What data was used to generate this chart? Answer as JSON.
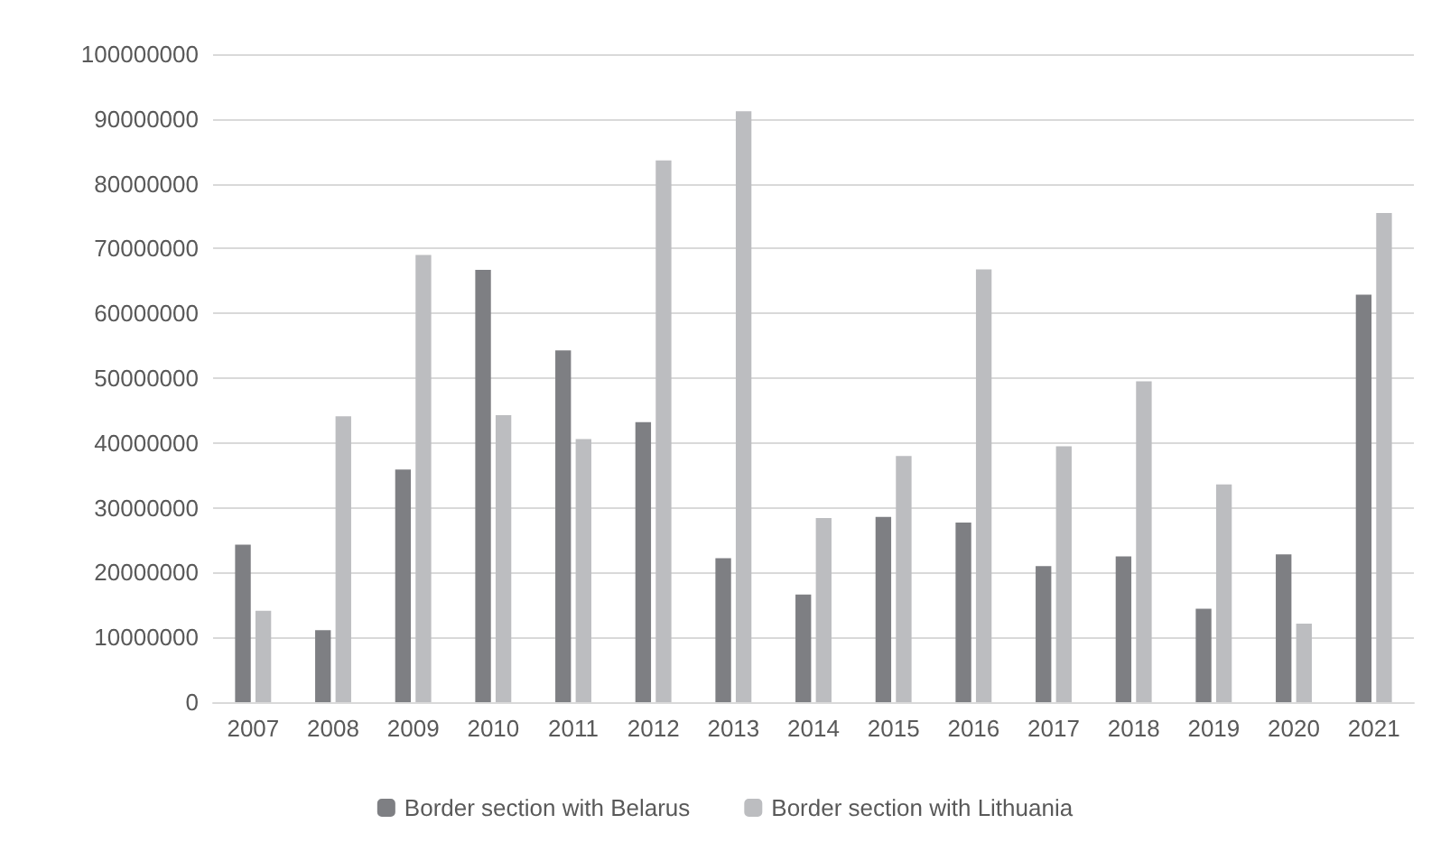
{
  "chart_data": {
    "type": "bar",
    "categories": [
      "2007",
      "2008",
      "2009",
      "2010",
      "2011",
      "2012",
      "2013",
      "2014",
      "2015",
      "2016",
      "2017",
      "2018",
      "2019",
      "2020",
      "2021"
    ],
    "series": [
      {
        "name": "Border section with Belarus",
        "color": "#7e7f83",
        "values": [
          24300000,
          11100000,
          35900000,
          66700000,
          54300000,
          43200000,
          22200000,
          16600000,
          28600000,
          27700000,
          21000000,
          22500000,
          14400000,
          22800000,
          62900000
        ]
      },
      {
        "name": "Border section with Lithuania",
        "color": "#bcbdc0",
        "values": [
          14100000,
          44100000,
          69000000,
          44300000,
          40600000,
          83600000,
          91200000,
          28400000,
          38000000,
          66800000,
          39500000,
          49500000,
          33600000,
          12100000,
          75500000
        ]
      }
    ],
    "ylim": [
      0,
      100000000
    ],
    "yticks": [
      0,
      10000000,
      20000000,
      30000000,
      40000000,
      50000000,
      60000000,
      70000000,
      80000000,
      90000000,
      100000000
    ],
    "grid": "y",
    "legend": "bottom"
  }
}
